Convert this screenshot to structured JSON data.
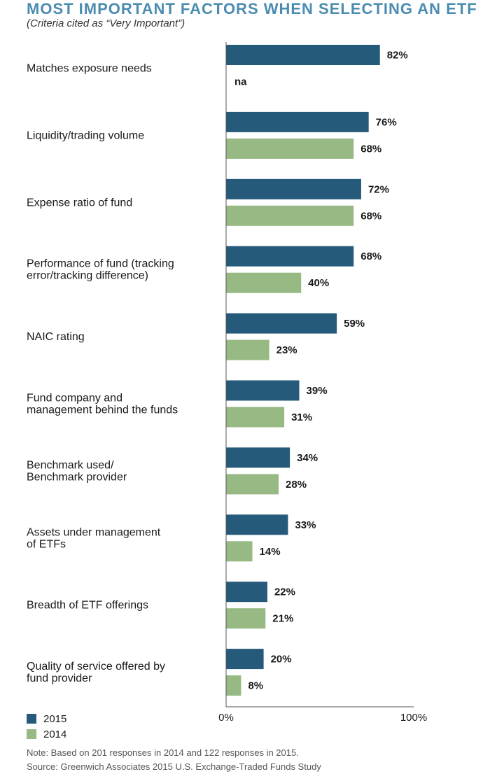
{
  "chart_data": {
    "type": "bar",
    "orientation": "horizontal",
    "title": "MOST IMPORTANT FACTORS WHEN SELECTING AN ETF",
    "subtitle": "(Criteria cited as “Very Important”)",
    "categories": [
      [
        "Matches exposure needs"
      ],
      [
        "Liquidity/trading volume"
      ],
      [
        "Expense ratio of fund"
      ],
      [
        "Performance of fund (tracking",
        "error/tracking difference)"
      ],
      [
        "NAIC rating"
      ],
      [
        "Fund company and",
        "management behind the funds"
      ],
      [
        "Benchmark used/",
        "Benchmark provider"
      ],
      [
        "Assets under management",
        "of ETFs"
      ],
      [
        "Breadth of ETF offerings"
      ],
      [
        "Quality of service offered by",
        "fund provider"
      ]
    ],
    "series": [
      {
        "name": "2015",
        "color": "#255a7a",
        "values": [
          82,
          76,
          72,
          68,
          59,
          39,
          34,
          33,
          22,
          20
        ],
        "labels": [
          "82%",
          "76%",
          "72%",
          "68%",
          "59%",
          "39%",
          "34%",
          "33%",
          "22%",
          "20%"
        ]
      },
      {
        "name": "2014",
        "color": "#97b984",
        "values": [
          null,
          68,
          68,
          40,
          23,
          31,
          28,
          14,
          21,
          8
        ],
        "labels": [
          "na",
          "68%",
          "68%",
          "40%",
          "23%",
          "31%",
          "28%",
          "14%",
          "21%",
          "8%"
        ]
      }
    ],
    "xlim": [
      0,
      100
    ],
    "x_ticks": [
      "0%",
      "100%"
    ],
    "legend_position": "bottom-left"
  },
  "notes": [
    "Note: Based on 201 responses in 2014 and 122 responses in 2015.",
    "Source: Greenwich Associates 2015 U.S. Exchange-Traded Funds Study"
  ]
}
